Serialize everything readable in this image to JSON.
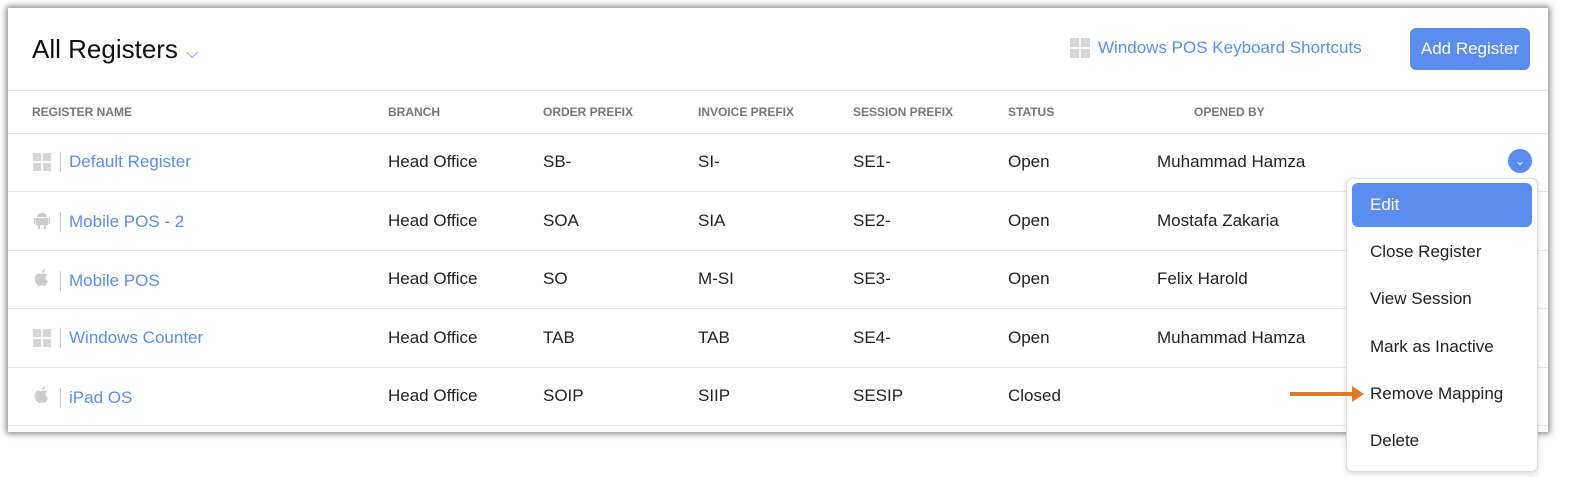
{
  "header": {
    "title": "All Registers",
    "shortcuts_label": "Windows POS Keyboard Shortcuts",
    "add_label": "Add Register"
  },
  "columns": [
    "REGISTER NAME",
    "BRANCH",
    "ORDER PREFIX",
    "INVOICE PREFIX",
    "SESSION PREFIX",
    "STATUS",
    "OPENED BY"
  ],
  "rows": [
    {
      "icon": "windows-icon",
      "name": "Default Register",
      "branch": "Head Office",
      "order": "SB-",
      "invoice": "SI-",
      "session": "SE1-",
      "status": "Open",
      "opened_by": "Muhammad Hamza"
    },
    {
      "icon": "android-icon",
      "name": "Mobile POS - 2",
      "branch": "Head Office",
      "order": "SOA",
      "invoice": "SIA",
      "session": "SE2-",
      "status": "Open",
      "opened_by": "Mostafa Zakaria"
    },
    {
      "icon": "apple-icon",
      "name": "Mobile POS",
      "branch": "Head Office",
      "order": "SO",
      "invoice": "M-SI",
      "session": "SE3-",
      "status": "Open",
      "opened_by": "Felix Harold"
    },
    {
      "icon": "windows-icon",
      "name": "Windows Counter",
      "branch": "Head Office",
      "order": "TAB",
      "invoice": "TAB",
      "session": "SE4-",
      "status": "Open",
      "opened_by": "Muhammad Hamza"
    },
    {
      "icon": "apple-icon",
      "name": "iPad OS",
      "branch": "Head Office",
      "order": "SOIP",
      "invoice": "SIIP",
      "session": "SESIP",
      "status": "Closed",
      "opened_by": ""
    }
  ],
  "menu": [
    "Edit",
    "Close Register",
    "View Session",
    "Mark as Inactive",
    "Remove Mapping",
    "Delete"
  ],
  "colors": {
    "accent": "#5b8def",
    "annotation_arrow": "#e07b2a"
  }
}
